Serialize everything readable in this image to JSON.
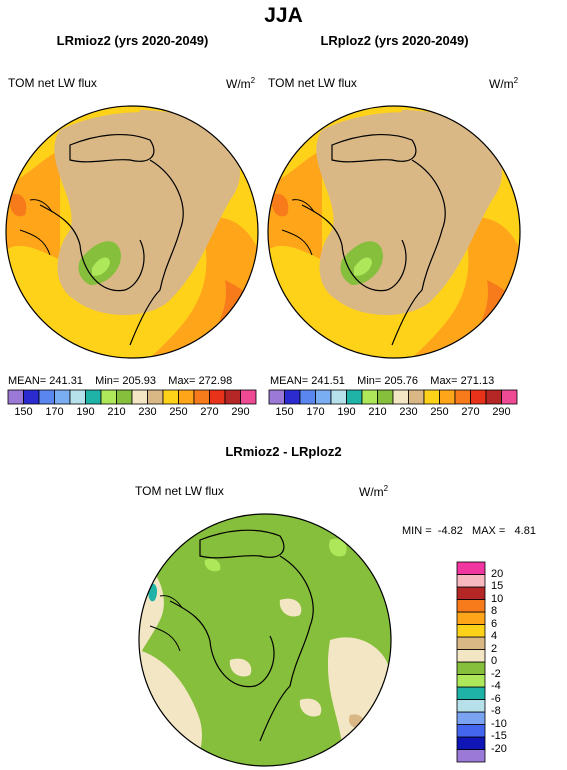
{
  "page_title": "JJA",
  "panels": [
    {
      "title": "LRmioz2 (yrs 2020-2049)",
      "variable": "TOM net LW flux",
      "units": "W/m",
      "units_sup": "2",
      "stats": {
        "mean_label": "MEAN=",
        "mean": "241.31",
        "min_label": "Min=",
        "min": "205.93",
        "max_label": "Max=",
        "max": "272.98"
      }
    },
    {
      "title": "LRploz2 (yrs 2020-2049)",
      "variable": "TOM net LW flux",
      "units": "W/m",
      "units_sup": "2",
      "stats": {
        "mean_label": "MEAN=",
        "mean": "241.51",
        "min_label": "Min=",
        "min": "205.76",
        "max_label": "Max=",
        "max": "271.13"
      }
    },
    {
      "title": "LRmioz2 - LRploz2",
      "variable": "TOM net LW flux",
      "units": "W/m",
      "units_sup": "2",
      "stats": {
        "min_label": "MIN =",
        "min": "-4.82",
        "max_label": "MAX =",
        "max": "4.81"
      }
    }
  ],
  "colorbar_abs": {
    "colors": [
      "#9b79d6",
      "#2b2bcf",
      "#5a86f0",
      "#7aaef2",
      "#b6e1ea",
      "#1fb3a8",
      "#aee85a",
      "#86bf3c",
      "#f3e6c4",
      "#d9b886",
      "#ffd21a",
      "#ffa51a",
      "#f77b1a",
      "#e8321a",
      "#b52626",
      "#ef4a94"
    ],
    "ticks": [
      "150",
      "170",
      "190",
      "210",
      "230",
      "250",
      "270",
      "290"
    ]
  },
  "colorbar_diff": {
    "colors": [
      "#9b79d6",
      "#0f16b5",
      "#4466ee",
      "#7aa4f2",
      "#b6e0ea",
      "#1fb3a8",
      "#aee85a",
      "#86bf3c",
      "#f3e6c4",
      "#d9b886",
      "#ffd21a",
      "#ffa51a",
      "#f77b1a",
      "#b52626",
      "#f7b8c0",
      "#f236a0"
    ],
    "ticks": [
      "-20",
      "-15",
      "-10",
      "-8",
      "-6",
      "-4",
      "-2",
      "0",
      "2",
      "4",
      "6",
      "8",
      "10",
      "15",
      "20"
    ]
  },
  "chart_data": [
    {
      "type": "heatmap",
      "title": "LRmioz2 (yrs 2020-2049)",
      "variable": "TOM net LW flux",
      "units": "W/m2",
      "projection": "north polar stereographic",
      "mean": 241.31,
      "min": 205.93,
      "max": 272.98,
      "levels": [
        150,
        160,
        170,
        180,
        190,
        200,
        210,
        220,
        230,
        240,
        250,
        260,
        270,
        280,
        290
      ]
    },
    {
      "type": "heatmap",
      "title": "LRploz2 (yrs 2020-2049)",
      "variable": "TOM net LW flux",
      "units": "W/m2",
      "projection": "north polar stereographic",
      "mean": 241.51,
      "min": 205.76,
      "max": 271.13,
      "levels": [
        150,
        160,
        170,
        180,
        190,
        200,
        210,
        220,
        230,
        240,
        250,
        260,
        270,
        280,
        290
      ]
    },
    {
      "type": "heatmap",
      "title": "LRmioz2 - LRploz2",
      "variable": "TOM net LW flux",
      "units": "W/m2",
      "projection": "north polar stereographic",
      "min": -4.82,
      "max": 4.81,
      "levels": [
        -20,
        -15,
        -10,
        -8,
        -6,
        -4,
        -2,
        0,
        2,
        4,
        6,
        8,
        10,
        15,
        20
      ]
    }
  ]
}
